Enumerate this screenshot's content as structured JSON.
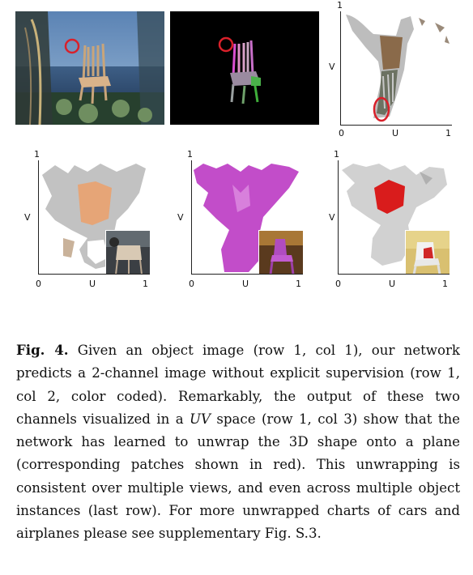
{
  "figure": {
    "panels": [
      {
        "id": "input-image",
        "caption_ref": "row 1, col 1"
      },
      {
        "id": "predicted-2ch",
        "caption_ref": "row 1, col 2"
      },
      {
        "id": "uv-chart-1",
        "axis": {
          "v_label": "V",
          "u_label": "U",
          "tick_0": "0",
          "tick_1": "1",
          "v_top": "1"
        }
      },
      {
        "id": "uv-chart-2",
        "axis": {
          "v_label": "V",
          "u_label": "U",
          "tick_0": "0",
          "tick_1": "1",
          "v_top": "1"
        }
      },
      {
        "id": "uv-chart-3",
        "axis": {
          "v_label": "V",
          "u_label": "U",
          "tick_0": "0",
          "tick_1": "1",
          "v_top": "1"
        }
      },
      {
        "id": "uv-chart-4",
        "axis": {
          "v_label": "V",
          "u_label": "U",
          "tick_0": "0",
          "tick_1": "1",
          "v_top": "1"
        }
      }
    ],
    "colors": {
      "highlight": "#d9202a",
      "patch_skin": "#e6a577",
      "patch_magenta": "#c24dc9",
      "patch_red": "#d91c1c"
    }
  },
  "caption": {
    "label": "Fig. 4.",
    "text_before_uv": " Given an object image (row 1, col 1), our network predicts a 2-channel image without explicit supervision (row 1, col 2, color coded). Remarkably, the output of these two channels visualized in a ",
    "uv": "UV",
    "text_after_uv": " space (row 1, col 3) show that the network has learned to unwrap the 3D shape onto a plane (corresponding patches shown in red). This unwrapping is consistent over multiple views, and even across multiple object instances (last row). For more unwrapped charts of cars and airplanes please see supplementary Fig. S.3."
  }
}
